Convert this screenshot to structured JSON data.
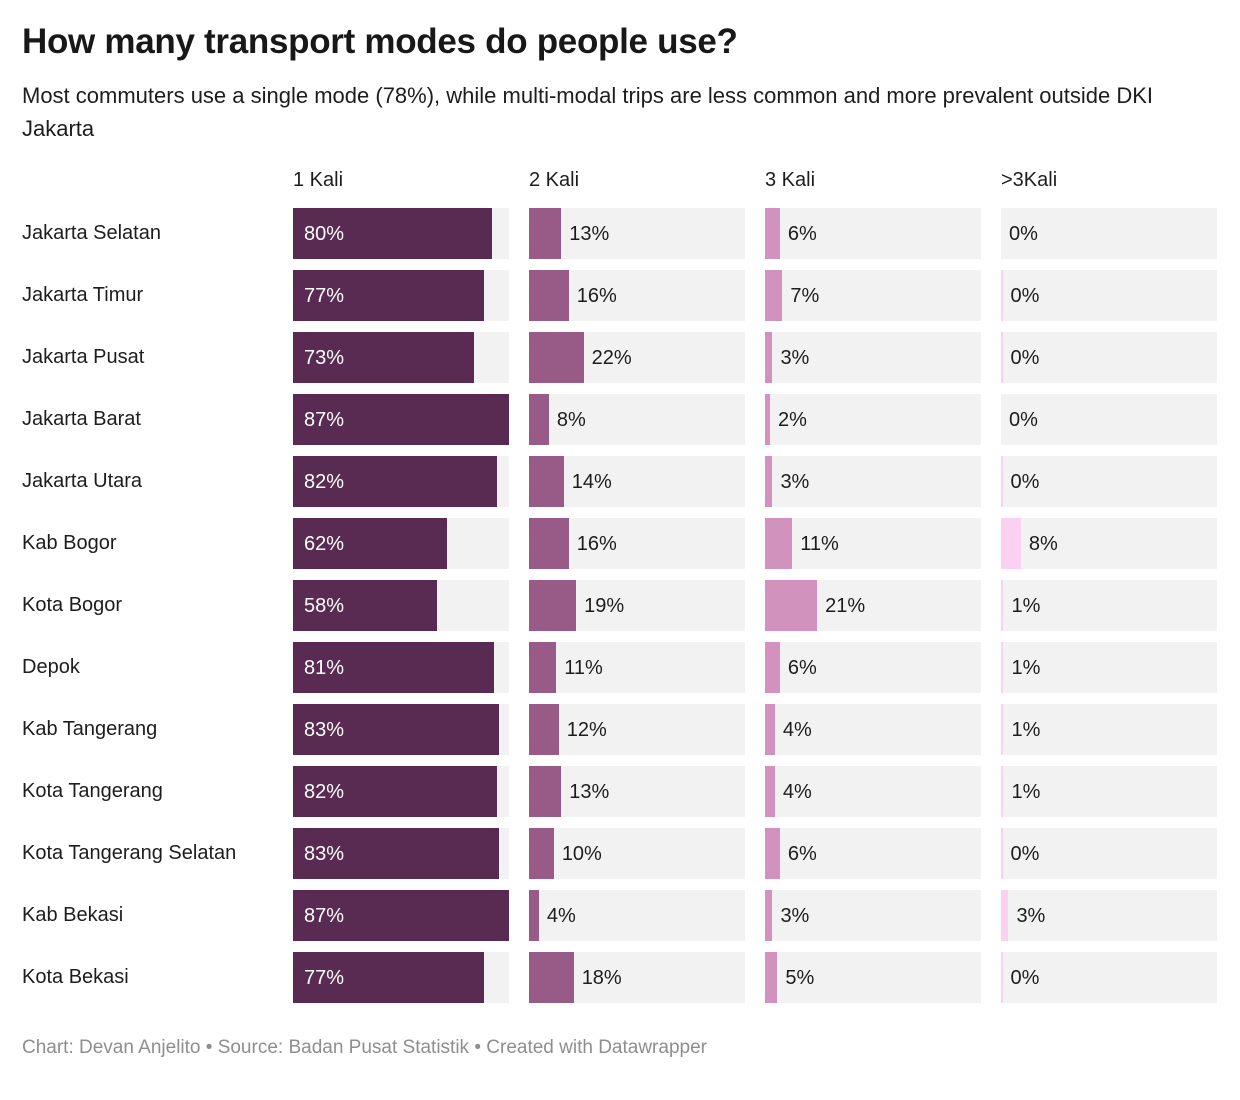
{
  "title": "How many transport modes do people use?",
  "subtitle": "Most commuters use a single mode (78%), while multi-modal trips are less common and more prevalent outside DKI Jakarta",
  "footer": "Chart: Devan Anjelito • Source: Badan Pusat Statistik • Created with Datawrapper",
  "chart_data": {
    "type": "bar",
    "title": "How many transport modes do people use?",
    "subtitle": "Most commuters use a single mode (78%), while multi-modal trips are less common and more prevalent outside DKI Jakarta",
    "columns": [
      "1 Kali",
      "2 Kali",
      "3 Kali",
      ">3Kali"
    ],
    "xmax": 87,
    "unit": "%",
    "bar_colors": [
      "#592B53",
      "#985A87",
      "#D292BE",
      "#FBD0F1"
    ],
    "track_color": "#f2f2f2",
    "categories": [
      "Jakarta Selatan",
      "Jakarta Timur",
      "Jakarta Pusat",
      "Jakarta Barat",
      "Jakarta Utara",
      "Kab Bogor",
      "Kota Bogor",
      "Depok",
      "Kab Tangerang",
      "Kota Tangerang",
      "Kota Tangerang Selatan",
      "Kab Bekasi",
      "Kota Bekasi"
    ],
    "rows": [
      {
        "label": "Jakarta Selatan",
        "values": [
          80,
          13,
          6,
          0
        ],
        "gt3_sliver": false
      },
      {
        "label": "Jakarta Timur",
        "values": [
          77,
          16,
          7,
          0
        ],
        "gt3_sliver": true
      },
      {
        "label": "Jakarta Pusat",
        "values": [
          73,
          22,
          3,
          0
        ],
        "gt3_sliver": true
      },
      {
        "label": "Jakarta Barat",
        "values": [
          87,
          8,
          2,
          0
        ],
        "gt3_sliver": false
      },
      {
        "label": "Jakarta Utara",
        "values": [
          82,
          14,
          3,
          0
        ],
        "gt3_sliver": true
      },
      {
        "label": "Kab Bogor",
        "values": [
          62,
          16,
          11,
          8
        ],
        "gt3_sliver": false
      },
      {
        "label": "Kota Bogor",
        "values": [
          58,
          19,
          21,
          1
        ],
        "gt3_sliver": false
      },
      {
        "label": "Depok",
        "values": [
          81,
          11,
          6,
          1
        ],
        "gt3_sliver": false
      },
      {
        "label": "Kab Tangerang",
        "values": [
          83,
          12,
          4,
          1
        ],
        "gt3_sliver": false
      },
      {
        "label": "Kota Tangerang",
        "values": [
          82,
          13,
          4,
          1
        ],
        "gt3_sliver": false
      },
      {
        "label": "Kota Tangerang Selatan",
        "values": [
          83,
          10,
          6,
          0
        ],
        "gt3_sliver": true
      },
      {
        "label": "Kab Bekasi",
        "values": [
          87,
          4,
          3,
          3
        ],
        "gt3_sliver": false
      },
      {
        "label": "Kota Bekasi",
        "values": [
          77,
          18,
          5,
          0
        ],
        "gt3_sliver": true
      }
    ]
  }
}
